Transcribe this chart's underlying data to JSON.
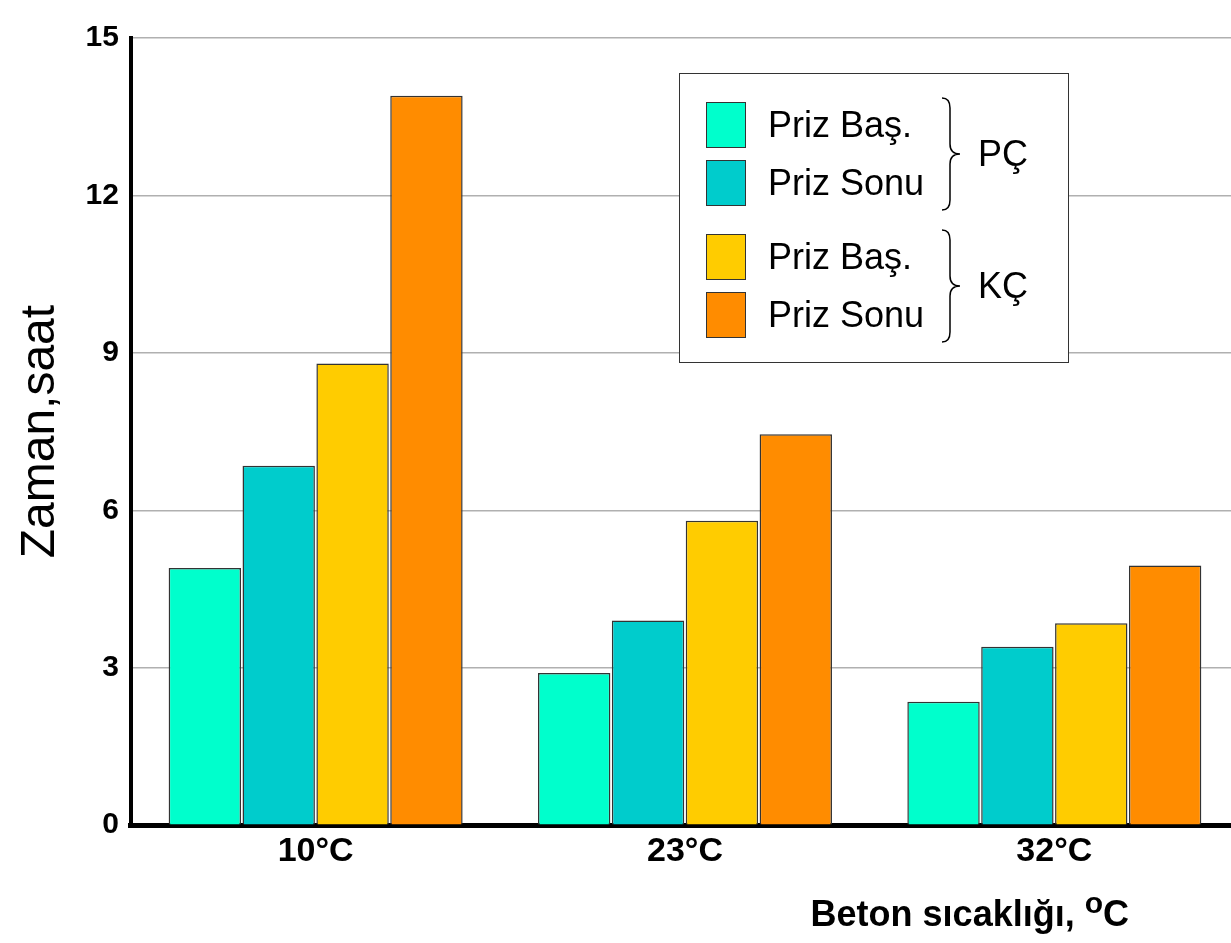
{
  "chart_data": {
    "type": "bar",
    "xlabel": "Beton sıcaklığı, $^{o}$C",
    "ylabel": "Zaman,saat",
    "categories": [
      "10°C",
      "23°C",
      "32°C"
    ],
    "series": [
      {
        "name": "Priz Baş.",
        "color": "#00ffcc",
        "values": [
          4.9,
          2.9,
          2.35
        ]
      },
      {
        "name": "Priz Sonu",
        "color": "#00cccc",
        "values": [
          6.85,
          3.9,
          3.4
        ]
      },
      {
        "name": "Priz Baş.",
        "color": "#ffcc00",
        "values": [
          8.8,
          5.8,
          3.85
        ]
      },
      {
        "name": "Priz Sonu",
        "color": "#ff8c00",
        "values": [
          13.9,
          7.45,
          4.95
        ]
      }
    ],
    "annotations": [
      "PÇ",
      "KÇ"
    ],
    "ylim": [
      0,
      15
    ],
    "yticks": [
      0,
      3,
      6,
      9,
      12,
      15
    ],
    "grid": "y",
    "legend": "top right"
  }
}
